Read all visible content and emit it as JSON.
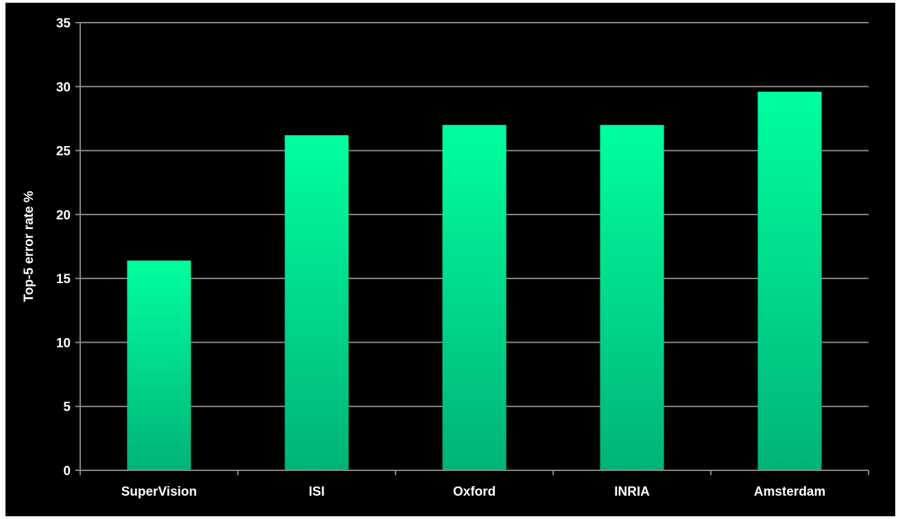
{
  "chart_data": {
    "type": "bar",
    "title": "",
    "xlabel": "",
    "ylabel": "Top-5 error rate %",
    "categories": [
      "SuperVision",
      "ISI",
      "Oxford",
      "INRIA",
      "Amsterdam"
    ],
    "values": [
      16.4,
      26.2,
      27.0,
      27.0,
      29.6
    ],
    "ylim": [
      0,
      35
    ],
    "yticks": [
      0,
      5,
      10,
      15,
      20,
      25,
      30,
      35
    ],
    "grid": true,
    "legend": "none",
    "colors": {
      "background": "#000000",
      "bar_top": "#00ff9f",
      "bar_bottom": "#00b377",
      "gridline": "#8a8a8a",
      "axis": "#8a8a8a",
      "text": "#ffffff"
    }
  }
}
